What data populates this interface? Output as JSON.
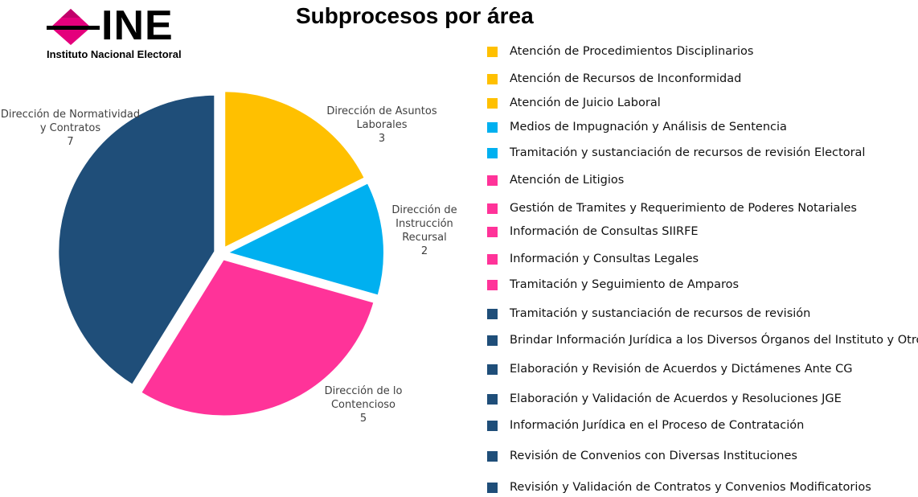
{
  "logo": {
    "wordmark": "INE",
    "subtitle": "Instituto Nacional Electoral"
  },
  "chart_data": {
    "type": "pie",
    "title": "Subprocesos por área",
    "slices": [
      {
        "label": "Dirección de Asuntos Laborales",
        "value": 3,
        "color": "#FFC000"
      },
      {
        "label": "Dirección de Instrucción Recursal",
        "value": 2,
        "color": "#00B0F0"
      },
      {
        "label": "Dirección de lo Contencioso",
        "value": 5,
        "color": "#FF3399"
      },
      {
        "label": "Dirección de Normatividad y Contratos",
        "value": 7,
        "color": "#1F4E79"
      }
    ],
    "legend_position": "right",
    "legend": [
      {
        "text": "Atención de Procedimientos Disciplinarios",
        "color": "#FFC000"
      },
      {
        "text": "Atención de Recursos de Inconformidad",
        "color": "#FFC000"
      },
      {
        "text": "Atención de Juicio Laboral",
        "color": "#FFC000"
      },
      {
        "text": "Medios de Impugnación y Análisis de Sentencia",
        "color": "#00B0F0"
      },
      {
        "text": "Tramitación y sustanciación de recursos de revisión Electoral",
        "color": "#00B0F0"
      },
      {
        "text": "Atención de Litigios",
        "color": "#FF3399"
      },
      {
        "text": "Gestión de Tramites y Requerimiento de Poderes Notariales",
        "color": "#FF3399"
      },
      {
        "text": "Información de Consultas SIIRFE",
        "color": "#FF3399"
      },
      {
        "text": "Información y Consultas Legales",
        "color": "#FF3399"
      },
      {
        "text": "Tramitación y Seguimiento de Amparos",
        "color": "#FF3399"
      },
      {
        "text": "Tramitación y sustanciación de recursos de revisión",
        "color": "#1F4E79"
      },
      {
        "text": "Brindar Información Jurídica a los Diversos Órganos del Instituto y Otros",
        "color": "#1F4E79"
      },
      {
        "text": "Elaboración y Revisión de Acuerdos y Dictámenes Ante CG",
        "color": "#1F4E79"
      },
      {
        "text": "Elaboración y Validación de Acuerdos y Resoluciones JGE",
        "color": "#1F4E79"
      },
      {
        "text": "Información Jurídica en el Proceso de Contratación",
        "color": "#1F4E79"
      },
      {
        "text": "Revisión de Convenios con Diversas Instituciones",
        "color": "#1F4E79"
      },
      {
        "text": "Revisión y Validación de Contratos y Convenios Modificatorios",
        "color": "#1F4E79"
      }
    ]
  }
}
